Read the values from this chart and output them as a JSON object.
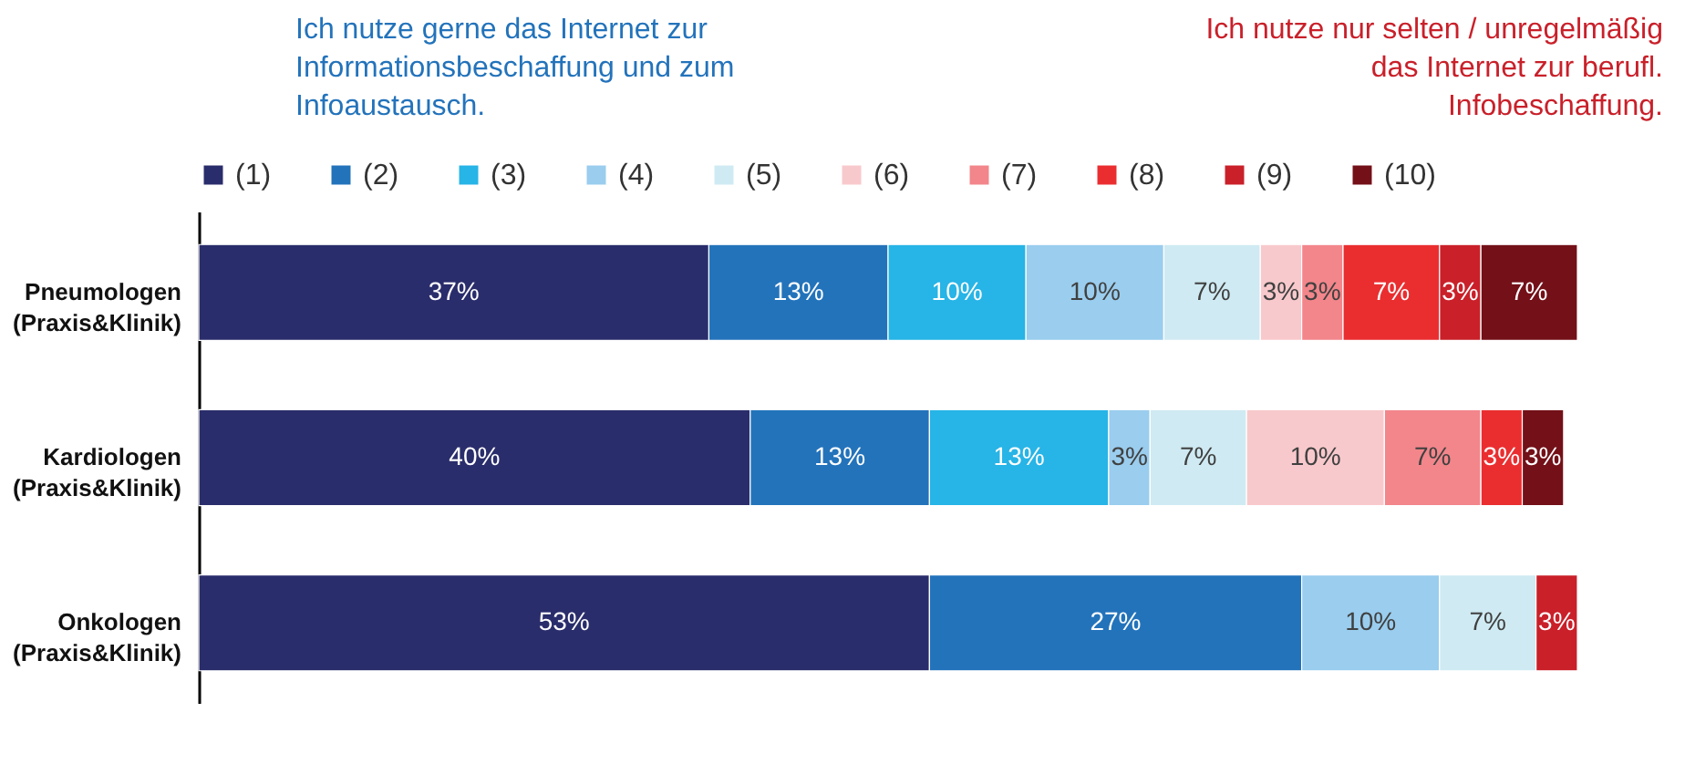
{
  "chart_data": {
    "type": "bar",
    "orientation": "horizontal",
    "stacked": true,
    "legend": "top",
    "annotations": [
      "Ich nutze gerne das Internet zur Informationsbeschaffung und zum Infoaustausch.",
      "Ich nutze nur selten / unregelmäßig das Internet zur berufl. Infobeschaffung."
    ],
    "categories": [
      "Pneumologen\n(Praxis&Klinik)",
      "Kardiologen\n(Praxis&Klinik)",
      "Onkologen\n(Praxis&Klinik)"
    ],
    "series": [
      {
        "name": "(1)",
        "color": "#2a2d6b",
        "values": [
          37,
          40,
          53
        ],
        "value_labels": [
          "37%",
          "40%",
          "53%"
        ]
      },
      {
        "name": "(2)",
        "color": "#2373bb",
        "values": [
          13,
          13,
          27
        ],
        "value_labels": [
          "13%",
          "13%",
          "27%"
        ]
      },
      {
        "name": "(3)",
        "color": "#27b4e6",
        "values": [
          10,
          13,
          null
        ],
        "value_labels": [
          "10%",
          "13%",
          null
        ]
      },
      {
        "name": "(4)",
        "color": "#9acdee",
        "values": [
          10,
          3,
          10
        ],
        "value_labels": [
          "10%",
          "3%",
          "10%"
        ]
      },
      {
        "name": "(5)",
        "color": "#cfeaf2",
        "values": [
          7,
          7,
          7
        ],
        "value_labels": [
          "7%",
          "7%",
          "7%"
        ]
      },
      {
        "name": "(6)",
        "color": "#f8c9cc",
        "values": [
          3,
          10,
          null
        ],
        "value_labels": [
          "3%",
          "10%",
          null
        ]
      },
      {
        "name": "(7)",
        "color": "#f2868b",
        "values": [
          3,
          7,
          null
        ],
        "value_labels": [
          "3%",
          "7%",
          null
        ]
      },
      {
        "name": "(8)",
        "color": "#ea2e30",
        "values": [
          7,
          3,
          null
        ],
        "value_labels": [
          "7%",
          "3%",
          null
        ]
      },
      {
        "name": "(9)",
        "color": "#c9202a",
        "values": [
          3,
          null,
          3
        ],
        "value_labels": [
          "3%",
          null,
          "3%"
        ]
      },
      {
        "name": "(10)",
        "color": "#731018",
        "values": [
          7,
          3,
          null
        ],
        "value_labels": [
          "7%",
          "3%",
          null
        ]
      }
    ]
  }
}
